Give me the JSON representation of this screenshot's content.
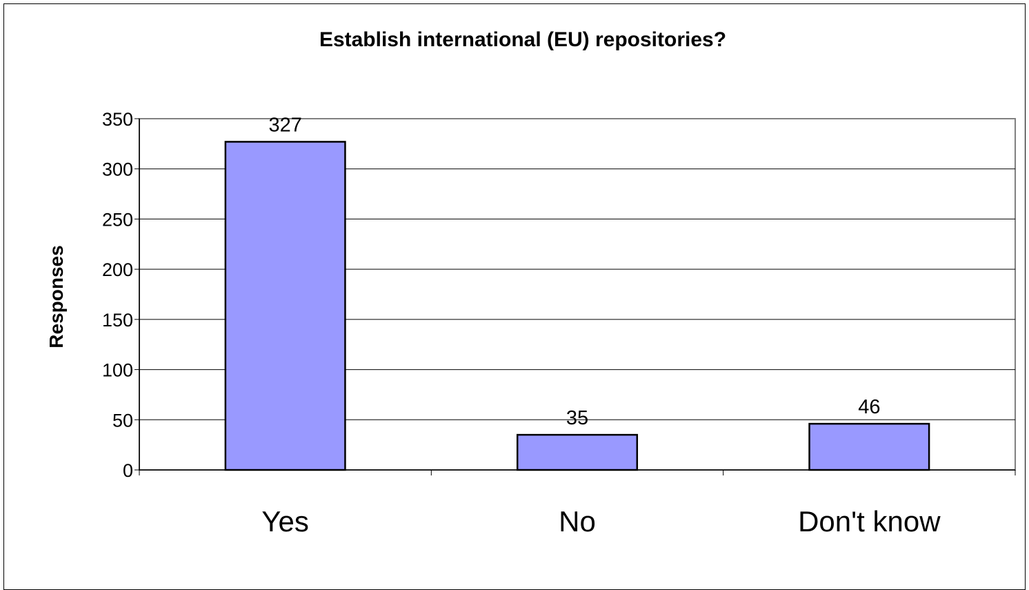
{
  "chart_data": {
    "type": "bar",
    "title": "Establish international (EU) repositories?",
    "xlabel": "",
    "ylabel": "Responses",
    "categories": [
      "Yes",
      "No",
      "Don't know"
    ],
    "values": [
      327,
      35,
      46
    ],
    "data_labels": [
      "327",
      "35",
      "46"
    ],
    "ylim": [
      0,
      350
    ],
    "yticks": [
      0,
      50,
      100,
      150,
      200,
      250,
      300,
      350
    ],
    "grid": true,
    "legend": "none",
    "bar_color": "#9999ff",
    "plot_background": "#ffffff"
  }
}
